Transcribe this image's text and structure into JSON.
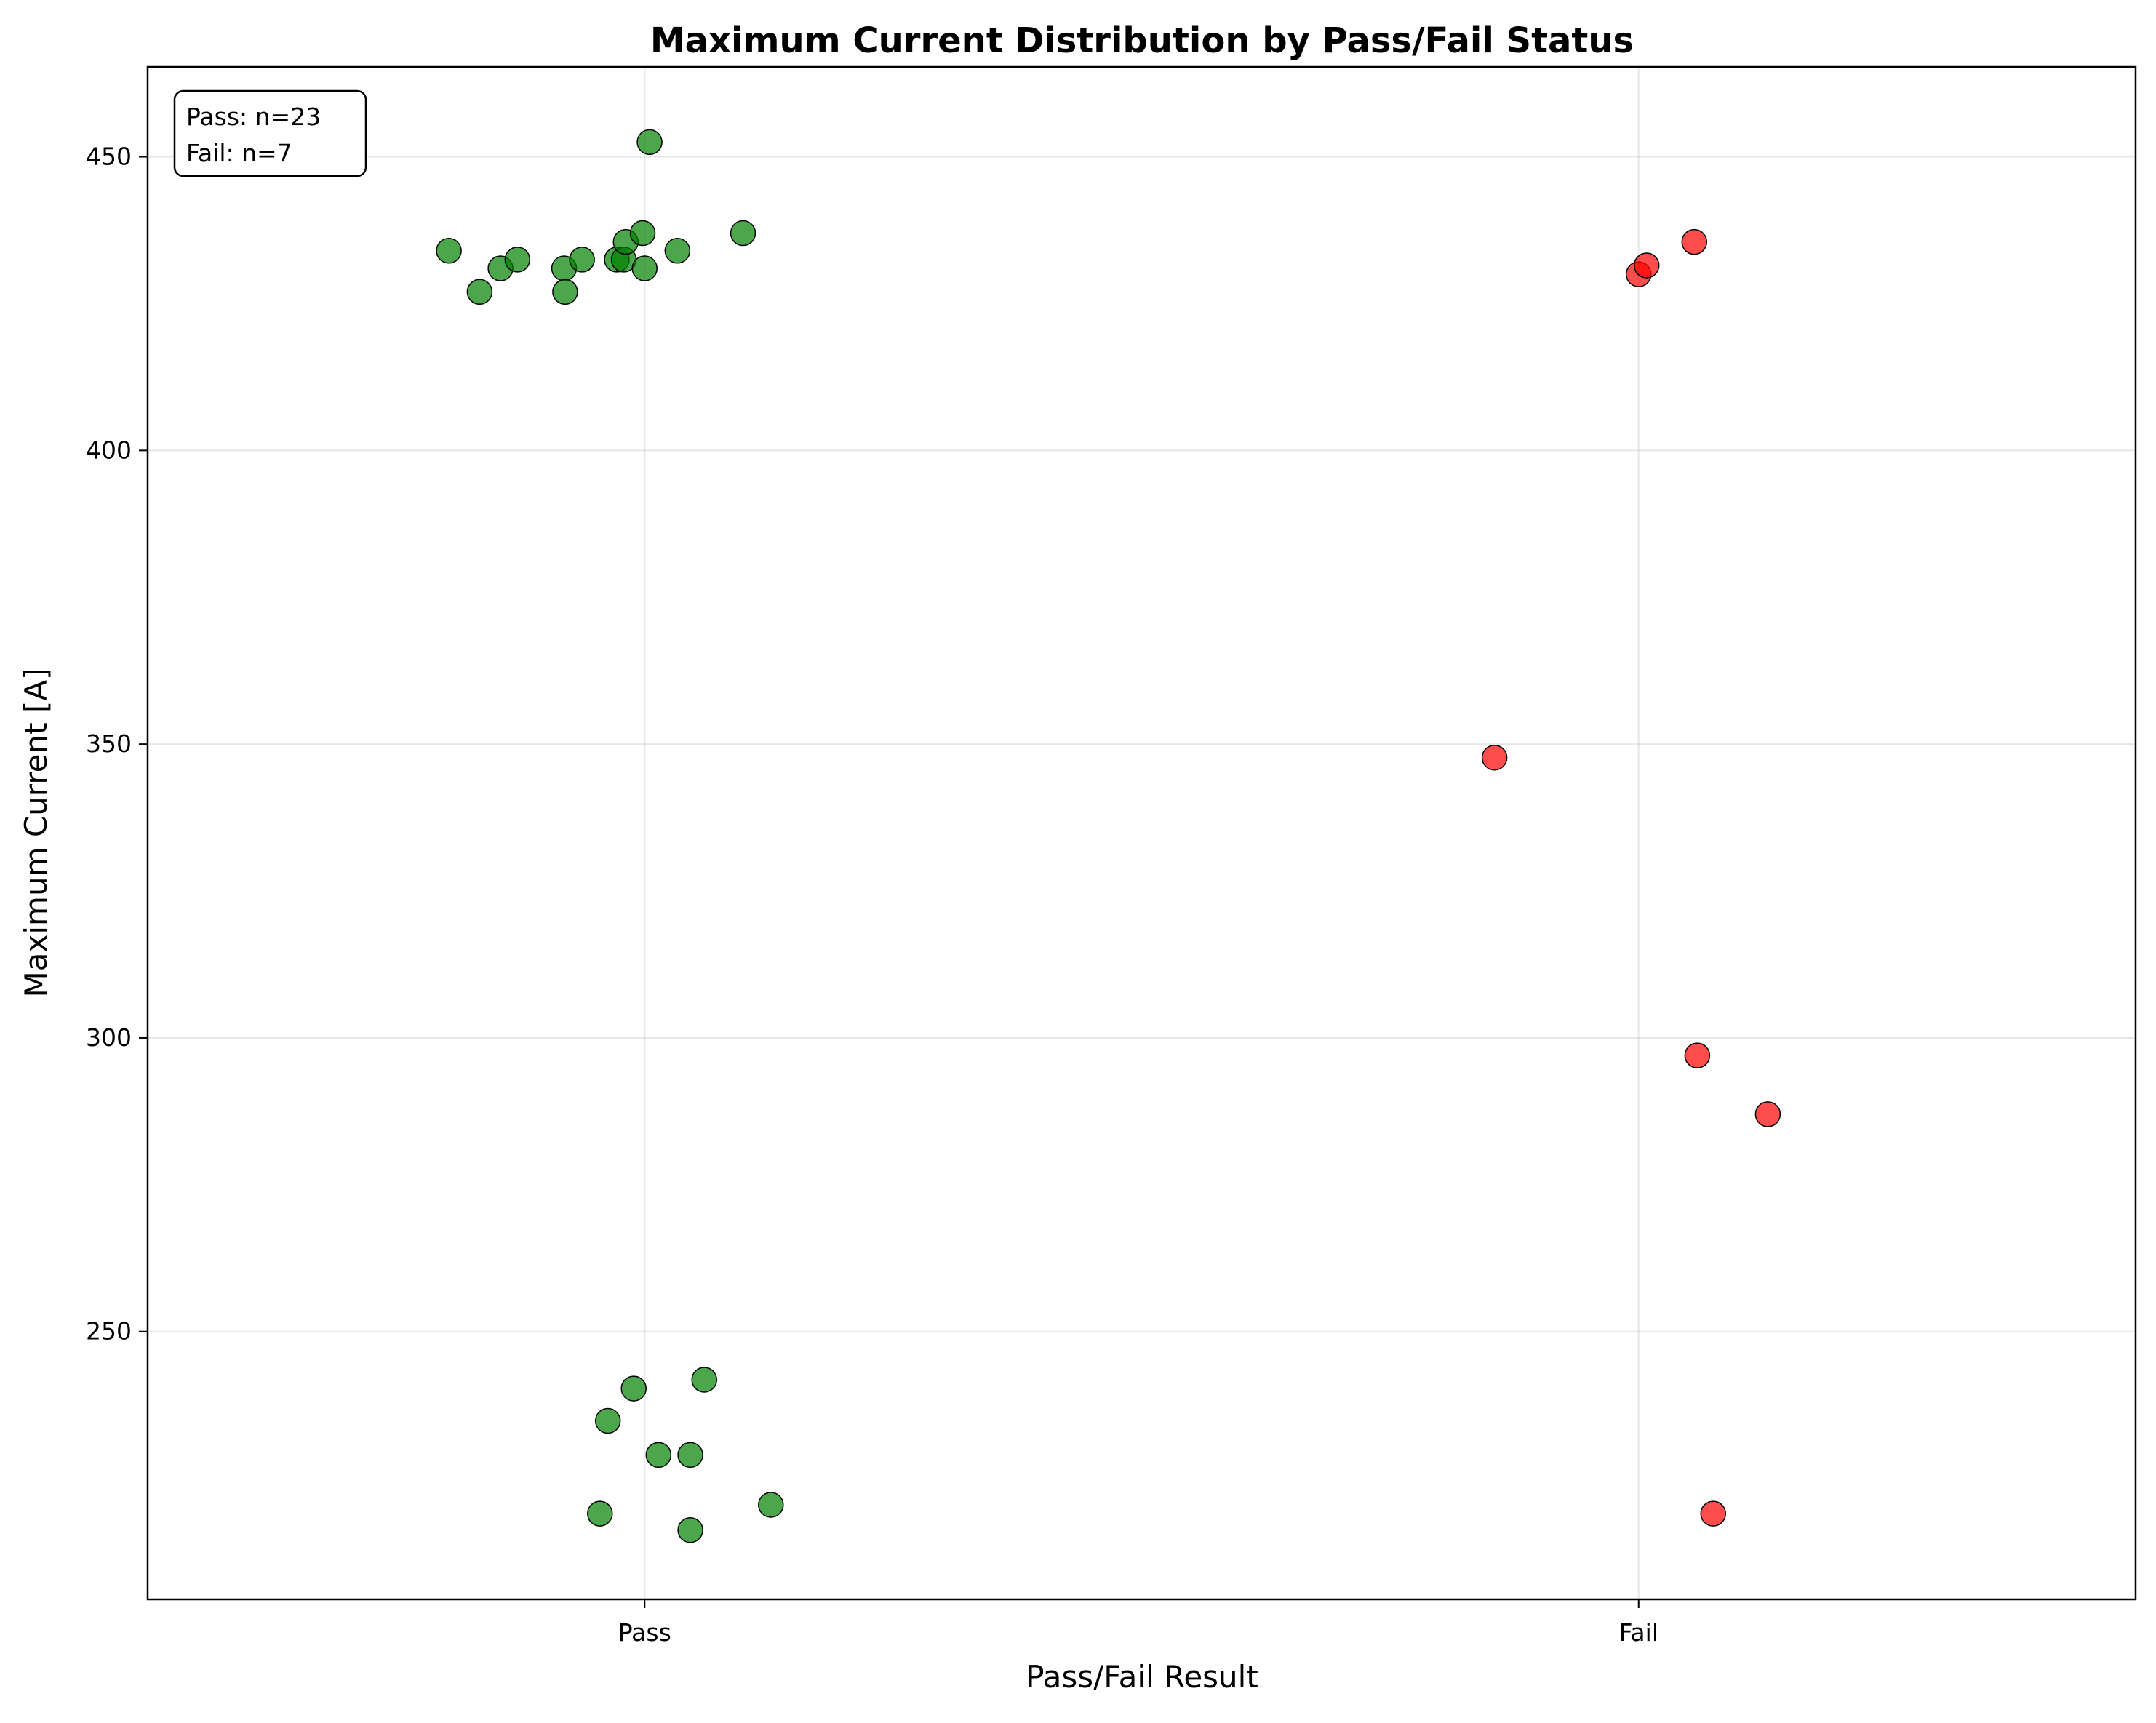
{
  "chart_data": {
    "type": "scatter",
    "title": "Maximum Current Distribution by Pass/Fail Status",
    "xlabel": "Pass/Fail Result",
    "ylabel": "Maximum Current [A]",
    "categories": [
      "Pass",
      "Fail"
    ],
    "x_range": [
      -0.5,
      1.5
    ],
    "ylim": [
      204.4,
      465.3
    ],
    "yticks": [
      250,
      300,
      350,
      400,
      450
    ],
    "grid": true,
    "annotation": {
      "lines": [
        "Pass: n=23",
        "Fail: n=7"
      ],
      "placement": "top-left"
    },
    "series": [
      {
        "category": "Pass",
        "color": "#008000",
        "points": [
          {
            "x": -0.197,
            "y": 434.0
          },
          {
            "x": -0.166,
            "y": 427.0
          },
          {
            "x": -0.145,
            "y": 431.0
          },
          {
            "x": -0.128,
            "y": 432.5
          },
          {
            "x": -0.081,
            "y": 431.0
          },
          {
            "x": -0.08,
            "y": 427.0
          },
          {
            "x": -0.063,
            "y": 432.5
          },
          {
            "x": -0.028,
            "y": 432.5
          },
          {
            "x": -0.021,
            "y": 432.5
          },
          {
            "x": -0.019,
            "y": 435.5
          },
          {
            "x": -0.002,
            "y": 437.0
          },
          {
            "x": 0.0,
            "y": 431.0
          },
          {
            "x": 0.005,
            "y": 452.5
          },
          {
            "x": 0.033,
            "y": 434.0
          },
          {
            "x": 0.099,
            "y": 437.0
          },
          {
            "x": -0.045,
            "y": 219.0
          },
          {
            "x": -0.037,
            "y": 234.8
          },
          {
            "x": -0.011,
            "y": 240.3
          },
          {
            "x": 0.014,
            "y": 229.0
          },
          {
            "x": 0.046,
            "y": 229.0
          },
          {
            "x": 0.046,
            "y": 216.2
          },
          {
            "x": 0.06,
            "y": 241.8
          },
          {
            "x": 0.127,
            "y": 220.5
          }
        ]
      },
      {
        "category": "Fail",
        "color": "#ff0000",
        "points": [
          {
            "x": 0.855,
            "y": 347.7
          },
          {
            "x": 1.0,
            "y": 430.0
          },
          {
            "x": 1.008,
            "y": 431.5
          },
          {
            "x": 1.056,
            "y": 435.5
          },
          {
            "x": 1.059,
            "y": 297.0
          },
          {
            "x": 1.13,
            "y": 287.0
          },
          {
            "x": 1.075,
            "y": 219.0
          }
        ]
      }
    ]
  }
}
